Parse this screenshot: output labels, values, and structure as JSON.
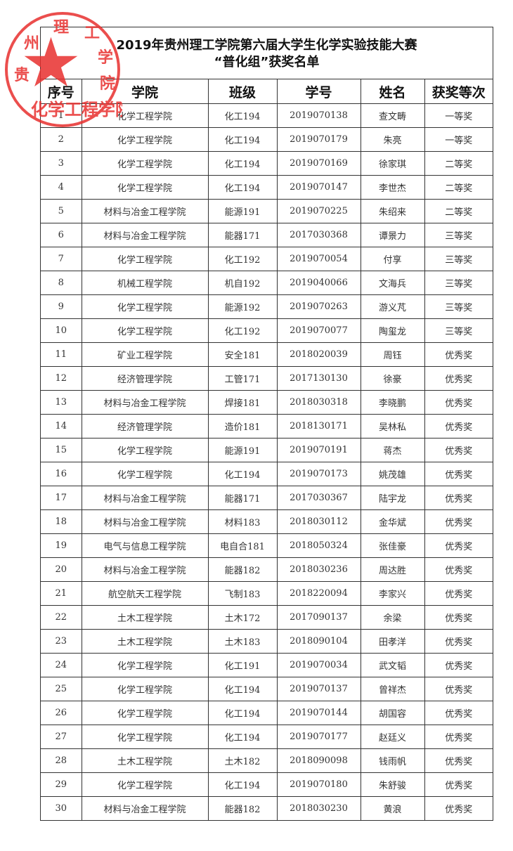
{
  "title": {
    "line1": "2019年贵州理工学院第六届大学生化学实验技能大赛",
    "line2": "“普化组”获奖名单"
  },
  "stamp": {
    "text_top": "贵州理工学院",
    "text_bottom": "化学工程学院",
    "color": "#e8302f"
  },
  "table": {
    "headers": [
      "序号",
      "学院",
      "班级",
      "学号",
      "姓名",
      "获奖等次"
    ],
    "rows": [
      [
        "1",
        "化学工程学院",
        "化工194",
        "2019070138",
        "查文畴",
        "一等奖"
      ],
      [
        "2",
        "化学工程学院",
        "化工194",
        "2019070179",
        "朱亮",
        "一等奖"
      ],
      [
        "3",
        "化学工程学院",
        "化工194",
        "2019070169",
        "徐家琪",
        "二等奖"
      ],
      [
        "4",
        "化学工程学院",
        "化工194",
        "2019070147",
        "李世杰",
        "二等奖"
      ],
      [
        "5",
        "材料与冶金工程学院",
        "能源191",
        "2019070225",
        "朱绍来",
        "二等奖"
      ],
      [
        "6",
        "材料与冶金工程学院",
        "能器171",
        "2017030368",
        "谭景力",
        "三等奖"
      ],
      [
        "7",
        "化学工程学院",
        "化工192",
        "2019070054",
        "付享",
        "三等奖"
      ],
      [
        "8",
        "机械工程学院",
        "机自192",
        "2019040066",
        "文海兵",
        "三等奖"
      ],
      [
        "9",
        "化学工程学院",
        "能源192",
        "2019070263",
        "游义芃",
        "三等奖"
      ],
      [
        "10",
        "化学工程学院",
        "化工192",
        "2019070077",
        "陶玺龙",
        "三等奖"
      ],
      [
        "11",
        "矿业工程学院",
        "安全181",
        "2018020039",
        "周钰",
        "优秀奖"
      ],
      [
        "12",
        "经济管理学院",
        "工管171",
        "2017130130",
        "徐豪",
        "优秀奖"
      ],
      [
        "13",
        "材料与冶金工程学院",
        "焊接181",
        "2018030318",
        "李晓鹏",
        "优秀奖"
      ],
      [
        "14",
        "经济管理学院",
        "造价181",
        "2018130171",
        "吴林私",
        "优秀奖"
      ],
      [
        "15",
        "化学工程学院",
        "能源191",
        "2019070191",
        "蒋杰",
        "优秀奖"
      ],
      [
        "16",
        "化学工程学院",
        "化工194",
        "2019070173",
        "姚茂雄",
        "优秀奖"
      ],
      [
        "17",
        "材料与冶金工程学院",
        "能器171",
        "2017030367",
        "陆宇龙",
        "优秀奖"
      ],
      [
        "18",
        "材料与冶金工程学院",
        "材料183",
        "2018030112",
        "金华斌",
        "优秀奖"
      ],
      [
        "19",
        "电气与信息工程学院",
        "电自合181",
        "2018050324",
        "张佳豪",
        "优秀奖"
      ],
      [
        "20",
        "材料与冶金工程学院",
        "能器182",
        "2018030236",
        "周达胜",
        "优秀奖"
      ],
      [
        "21",
        "航空航天工程学院",
        "飞制183",
        "2018220094",
        "李家兴",
        "优秀奖"
      ],
      [
        "22",
        "土木工程学院",
        "土木172",
        "2017090137",
        "余梁",
        "优秀奖"
      ],
      [
        "23",
        "土木工程学院",
        "土木183",
        "2018090104",
        "田孝洋",
        "优秀奖"
      ],
      [
        "24",
        "化学工程学院",
        "化工191",
        "2019070034",
        "武文韬",
        "优秀奖"
      ],
      [
        "25",
        "化学工程学院",
        "化工194",
        "2019070137",
        "曾祥杰",
        "优秀奖"
      ],
      [
        "26",
        "化学工程学院",
        "化工194",
        "2019070144",
        "胡国容",
        "优秀奖"
      ],
      [
        "27",
        "化学工程学院",
        "化工194",
        "2019070177",
        "赵廷义",
        "优秀奖"
      ],
      [
        "28",
        "土木工程学院",
        "土木182",
        "2018090098",
        "钱雨帆",
        "优秀奖"
      ],
      [
        "29",
        "化学工程学院",
        "化工194",
        "2019070180",
        "朱舒骏",
        "优秀奖"
      ],
      [
        "30",
        "材料与冶金工程学院",
        "能器182",
        "2018030230",
        "黄浪",
        "优秀奖"
      ]
    ]
  }
}
